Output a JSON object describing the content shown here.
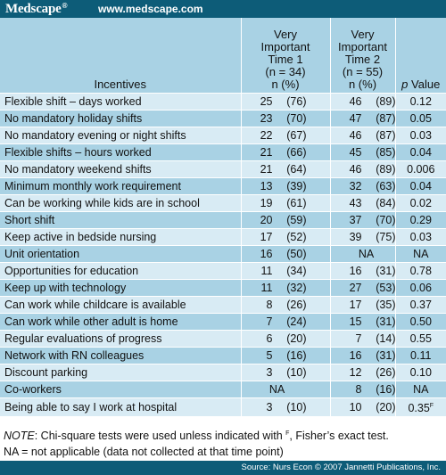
{
  "branding": {
    "logo": "Medscape",
    "reg_mark": "®",
    "url": "www.medscape.com"
  },
  "table": {
    "headers": {
      "incentives": "Incentives",
      "time1": [
        "Very",
        "Important",
        "Time 1",
        "(n = 34)",
        "n (%)"
      ],
      "time2": [
        "Very",
        "Important",
        "Time 2",
        "(n = 55)",
        "n (%)"
      ],
      "p_value_p": "p",
      "p_value_rest": " Value"
    },
    "rows": [
      {
        "incentive": "Flexible shift – days worked",
        "t1n": "25",
        "t1p": "(76)",
        "t2n": "46",
        "t2p": "(89)",
        "p": "0.12"
      },
      {
        "incentive": "No mandatory holiday shifts",
        "t1n": "23",
        "t1p": "(70)",
        "t2n": "47",
        "t2p": "(87)",
        "p": "0.05"
      },
      {
        "incentive": "No mandatory evening or night shifts",
        "t1n": "22",
        "t1p": "(67)",
        "t2n": "46",
        "t2p": "(87)",
        "p": "0.03"
      },
      {
        "incentive": "Flexible shifts – hours worked",
        "t1n": "21",
        "t1p": "(66)",
        "t2n": "45",
        "t2p": "(85)",
        "p": "0.04"
      },
      {
        "incentive": "No mandatory weekend shifts",
        "t1n": "21",
        "t1p": "(64)",
        "t2n": "46",
        "t2p": "(89)",
        "p": "0.006"
      },
      {
        "incentive": "Minimum monthly work requirement",
        "t1n": "13",
        "t1p": "(39)",
        "t2n": "32",
        "t2p": "(63)",
        "p": "0.04"
      },
      {
        "incentive": "Can be working while kids are in school",
        "t1n": "19",
        "t1p": "(61)",
        "t2n": "43",
        "t2p": "(84)",
        "p": "0.02"
      },
      {
        "incentive": "Short shift",
        "t1n": "20",
        "t1p": "(59)",
        "t2n": "37",
        "t2p": "(70)",
        "p": "0.29"
      },
      {
        "incentive": "Keep active in bedside nursing",
        "t1n": "17",
        "t1p": "(52)",
        "t2n": "39",
        "t2p": "(75)",
        "p": "0.03"
      },
      {
        "incentive": "Unit orientation",
        "t1n": "16",
        "t1p": "(50)",
        "t2": "NA",
        "p": "NA"
      },
      {
        "incentive": "Opportunities for education",
        "t1n": "11",
        "t1p": "(34)",
        "t2n": "16",
        "t2p": "(31)",
        "p": "0.78"
      },
      {
        "incentive": "Keep up with technology",
        "t1n": "11",
        "t1p": "(32)",
        "t2n": "27",
        "t2p": "(53)",
        "p": "0.06"
      },
      {
        "incentive": "Can work while childcare is available",
        "t1n": "8",
        "t1p": "(26)",
        "t2n": "17",
        "t2p": "(35)",
        "p": "0.37"
      },
      {
        "incentive": "Can work while other adult is home",
        "t1n": "7",
        "t1p": "(24)",
        "t2n": "15",
        "t2p": "(31)",
        "p": "0.50"
      },
      {
        "incentive": "Regular evaluations of progress",
        "t1n": "6",
        "t1p": "(20)",
        "t2n": "7",
        "t2p": "(14)",
        "p": "0.55"
      },
      {
        "incentive": "Network with RN colleagues",
        "t1n": "5",
        "t1p": "(16)",
        "t2n": "16",
        "t2p": "(31)",
        "p": "0.11"
      },
      {
        "incentive": "Discount parking",
        "t1n": "3",
        "t1p": "(10)",
        "t2n": "12",
        "t2p": "(26)",
        "p": "0.10"
      },
      {
        "incentive": "Co-workers",
        "t1": "NA",
        "t2n": "8",
        "t2p": "(16)",
        "p": "NA"
      },
      {
        "incentive": "Being able to say I work at hospital",
        "t1n": "3",
        "t1p": "(10)",
        "t2n": "10",
        "t2p": "(20)",
        "p": "0.35",
        "p_sup": "F"
      }
    ]
  },
  "notes": {
    "note_label": "NOTE",
    "note_text": ": Chi-square tests were used unless indicated with ",
    "note_sup": "F",
    "note_end": ", Fisher’s exact test.",
    "na_note": "NA = not applicable (data not collected at that time point)"
  },
  "source": "Source: Nurs Econ © 2007 Jannetti Publications, Inc."
}
